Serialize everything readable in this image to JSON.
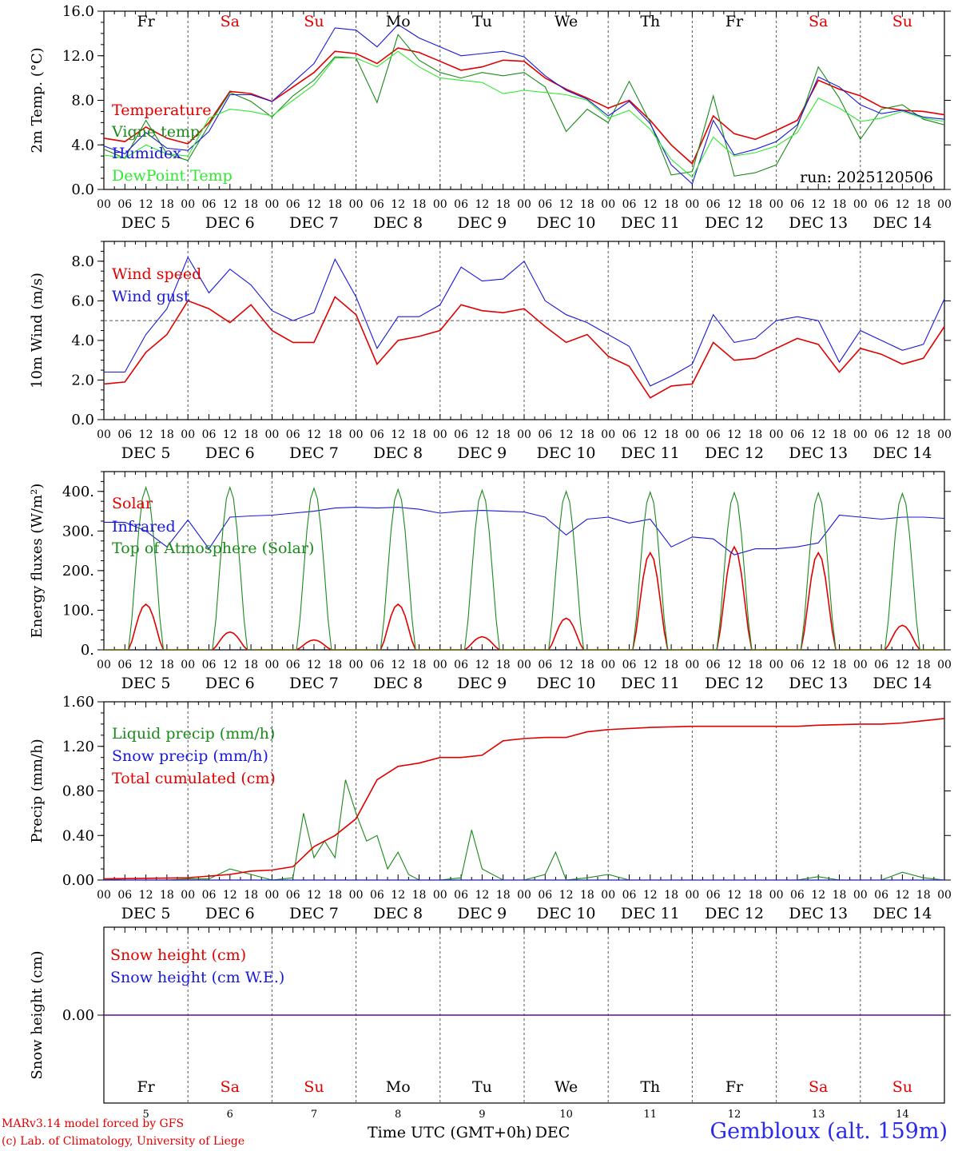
{
  "colors": {
    "red": "#e00000",
    "green": "#1a8a1a",
    "blue": "#1818d8",
    "lightgreen": "#30e830",
    "grid": "#555555"
  },
  "days": {
    "names": [
      "Fr",
      "Sa",
      "Su",
      "Mo",
      "Tu",
      "We",
      "Th",
      "Fr",
      "Sa",
      "Su"
    ],
    "weekend": [
      false,
      true,
      true,
      false,
      false,
      false,
      false,
      false,
      true,
      true
    ],
    "labels": [
      "DEC  5",
      "DEC  6",
      "DEC  7",
      "DEC  8",
      "DEC  9",
      "DEC 10",
      "DEC 11",
      "DEC 12",
      "DEC 13",
      "DEC 14"
    ],
    "nums": [
      "5",
      "6",
      "7",
      "8",
      "9",
      "10",
      "11",
      "12",
      "13",
      "14"
    ],
    "hour_ticks": [
      "00",
      "06",
      "12",
      "18"
    ],
    "end_tick": "00"
  },
  "footer": {
    "model": "MARv3.14 model forced by GFS",
    "lab": "(c) Lab. of Climatology, University of Liege",
    "time_label": "Time UTC (GMT+0h)",
    "month": "DEC",
    "site": "Gembloux (alt. 159m)"
  },
  "chart_data": [
    {
      "type": "line",
      "ylabel": "2m Temp. (°C)",
      "ylim": [
        0,
        16
      ],
      "yticks": [
        "0.0",
        "4.0",
        "8.0",
        "12.0",
        "16.0"
      ],
      "annotation": "run: 2025120506",
      "x_unit": "hours from DEC 5 00 UTC",
      "series": [
        {
          "name": "Temperature",
          "color": "#e00000",
          "x": [
            0,
            6,
            12,
            18,
            24,
            30,
            36,
            42,
            48,
            54,
            60,
            66,
            72,
            78,
            84,
            90,
            96,
            102,
            108,
            114,
            120,
            126,
            132,
            138,
            144,
            150,
            156,
            162,
            168,
            174,
            180,
            186,
            192,
            198,
            204,
            210,
            216,
            222,
            228,
            234,
            240
          ],
          "y": [
            4.6,
            4.3,
            5.6,
            4.6,
            4.1,
            6.0,
            8.8,
            8.6,
            7.9,
            9.2,
            10.5,
            12.4,
            12.2,
            11.3,
            12.7,
            12.3,
            11.5,
            10.7,
            11.0,
            11.6,
            11.5,
            10.0,
            9.0,
            8.2,
            7.3,
            8.0,
            6.2,
            4.0,
            2.3,
            6.6,
            5.0,
            4.5,
            5.3,
            6.2,
            9.8,
            9.0,
            8.4,
            7.4,
            7.1,
            7.0,
            6.7
          ]
        },
        {
          "name": "Vigne temp",
          "color": "#1a8a1a",
          "x": [
            0,
            6,
            12,
            18,
            24,
            30,
            36,
            42,
            48,
            54,
            60,
            66,
            72,
            78,
            84,
            90,
            96,
            102,
            108,
            114,
            120,
            126,
            132,
            138,
            144,
            150,
            156,
            162,
            168,
            174,
            180,
            186,
            192,
            198,
            204,
            210,
            216,
            222,
            228,
            234,
            240
          ],
          "y": [
            3.6,
            2.8,
            6.2,
            3.2,
            2.6,
            5.8,
            8.7,
            7.9,
            6.5,
            8.4,
            9.8,
            11.9,
            11.8,
            7.8,
            13.9,
            11.6,
            10.5,
            10.0,
            10.5,
            10.2,
            10.5,
            9.2,
            5.2,
            7.2,
            6.0,
            9.7,
            6.0,
            1.3,
            1.6,
            8.4,
            1.2,
            1.5,
            2.2,
            5.6,
            11.0,
            8.2,
            4.5,
            7.2,
            7.6,
            6.3,
            5.8
          ]
        },
        {
          "name": "Humidex",
          "color": "#1818d8",
          "x": [
            0,
            6,
            12,
            18,
            24,
            30,
            36,
            42,
            48,
            54,
            60,
            66,
            72,
            78,
            84,
            90,
            96,
            102,
            108,
            114,
            120,
            126,
            132,
            138,
            144,
            150,
            156,
            162,
            168,
            174,
            180,
            186,
            192,
            198,
            204,
            210,
            216,
            222,
            228,
            234,
            240
          ],
          "y": [
            3.9,
            3.2,
            5.1,
            3.7,
            3.5,
            5.2,
            8.5,
            8.5,
            7.9,
            9.6,
            11.3,
            14.5,
            14.3,
            12.8,
            14.8,
            13.6,
            12.8,
            12.0,
            12.2,
            12.4,
            11.9,
            10.2,
            8.9,
            8.1,
            6.6,
            7.9,
            5.9,
            2.2,
            0.5,
            6.2,
            3.1,
            3.6,
            4.3,
            5.8,
            10.1,
            9.2,
            7.6,
            6.8,
            7.1,
            6.5,
            6.3
          ]
        },
        {
          "name": "DewPoint Temp",
          "color": "#30e830",
          "x": [
            0,
            6,
            12,
            18,
            24,
            30,
            36,
            42,
            48,
            54,
            60,
            66,
            72,
            78,
            84,
            90,
            96,
            102,
            108,
            114,
            120,
            126,
            132,
            138,
            144,
            150,
            156,
            162,
            168,
            174,
            180,
            186,
            192,
            198,
            204,
            210,
            216,
            222,
            228,
            234,
            240
          ],
          "y": [
            3.1,
            2.8,
            4.0,
            3.2,
            3.0,
            6.4,
            7.2,
            7.0,
            6.6,
            8.0,
            9.4,
            11.8,
            11.8,
            11.0,
            12.4,
            11.0,
            10.0,
            9.8,
            9.6,
            8.6,
            8.9,
            8.7,
            8.5,
            8.0,
            6.4,
            7.1,
            5.4,
            2.7,
            1.1,
            4.7,
            3.0,
            3.3,
            3.9,
            5.1,
            8.2,
            7.3,
            6.1,
            6.4,
            7.0,
            6.4,
            6.1
          ]
        }
      ]
    },
    {
      "type": "line",
      "ylabel": "10m Wind (m/s)",
      "ylim": [
        0,
        9
      ],
      "yticks": [
        "0.0",
        "2.0",
        "4.0",
        "6.0",
        "8.0"
      ],
      "reference_line": 5.0,
      "x_unit": "hours from DEC 5 00 UTC",
      "series": [
        {
          "name": "Wind speed",
          "color": "#e00000",
          "x": [
            0,
            6,
            12,
            18,
            24,
            30,
            36,
            42,
            48,
            54,
            60,
            66,
            72,
            78,
            84,
            90,
            96,
            102,
            108,
            114,
            120,
            126,
            132,
            138,
            144,
            150,
            156,
            162,
            168,
            174,
            180,
            186,
            192,
            198,
            204,
            210,
            216,
            222,
            228,
            234,
            240
          ],
          "y": [
            1.8,
            1.9,
            3.4,
            4.3,
            6.0,
            5.6,
            4.9,
            5.8,
            4.5,
            3.9,
            3.9,
            6.2,
            5.3,
            2.8,
            4.0,
            4.2,
            4.5,
            5.8,
            5.5,
            5.4,
            5.6,
            4.7,
            3.9,
            4.3,
            3.2,
            2.7,
            1.1,
            1.7,
            1.8,
            3.9,
            3.0,
            3.1,
            3.6,
            4.1,
            3.8,
            2.4,
            3.6,
            3.3,
            2.8,
            3.1,
            4.7
          ]
        },
        {
          "name": "Wind gust",
          "color": "#1818d8",
          "x": [
            0,
            6,
            12,
            18,
            24,
            30,
            36,
            42,
            48,
            54,
            60,
            66,
            72,
            78,
            84,
            90,
            96,
            102,
            108,
            114,
            120,
            126,
            132,
            138,
            144,
            150,
            156,
            162,
            168,
            174,
            180,
            186,
            192,
            198,
            204,
            210,
            216,
            222,
            228,
            234,
            240
          ],
          "y": [
            2.4,
            2.4,
            4.3,
            5.6,
            8.2,
            6.4,
            7.6,
            6.8,
            5.5,
            5.0,
            5.4,
            8.1,
            6.2,
            3.6,
            5.2,
            5.2,
            5.8,
            7.7,
            7.0,
            7.1,
            8.0,
            6.0,
            5.3,
            4.9,
            4.3,
            3.7,
            1.7,
            2.2,
            2.8,
            5.3,
            3.9,
            4.1,
            5.0,
            5.2,
            5.0,
            2.9,
            4.5,
            4.0,
            3.5,
            3.8,
            6.1
          ]
        }
      ]
    },
    {
      "type": "line",
      "ylabel": "Energy fluxes (W/m²)",
      "ylim": [
        0,
        450
      ],
      "yticks": [
        "0.",
        "100.",
        "200.",
        "300.",
        "400."
      ],
      "x_unit": "hours from DEC 5 00 UTC",
      "series": [
        {
          "name": "Solar",
          "color": "#e00000",
          "peaks": [
            115,
            45,
            25,
            115,
            33,
            80,
            245,
            260,
            245,
            62
          ]
        },
        {
          "name": "Infrared",
          "color": "#1818d8",
          "x": [
            0,
            6,
            12,
            18,
            24,
            30,
            36,
            42,
            48,
            54,
            60,
            66,
            72,
            78,
            84,
            90,
            96,
            102,
            108,
            114,
            120,
            126,
            132,
            138,
            144,
            150,
            156,
            162,
            168,
            174,
            180,
            186,
            192,
            198,
            204,
            210,
            216,
            222,
            228,
            234,
            240
          ],
          "y": [
            322,
            322,
            300,
            260,
            328,
            255,
            335,
            338,
            340,
            345,
            350,
            358,
            360,
            358,
            360,
            355,
            345,
            350,
            352,
            350,
            348,
            335,
            290,
            330,
            335,
            320,
            330,
            260,
            285,
            280,
            240,
            255,
            255,
            260,
            270,
            340,
            335,
            330,
            335,
            335,
            332
          ]
        },
        {
          "name": "Top of Atmosphere (Solar)",
          "color": "#1a8a1a",
          "peaks": [
            410,
            410,
            408,
            405,
            403,
            400,
            398,
            397,
            396,
            395
          ]
        }
      ]
    },
    {
      "type": "line",
      "ylabel": "Precip (mm/h)",
      "ylim": [
        0,
        1.6
      ],
      "yticks": [
        "0.00",
        "0.40",
        "0.80",
        "1.20",
        "1.60"
      ],
      "x_unit": "hours from DEC 5 00 UTC",
      "series": [
        {
          "name": "Liquid precip (mm/h)",
          "color": "#1a8a1a",
          "x": [
            0,
            6,
            12,
            18,
            24,
            30,
            36,
            42,
            48,
            54,
            57,
            60,
            63,
            66,
            69,
            72,
            75,
            78,
            81,
            84,
            87,
            90,
            96,
            102,
            105,
            108,
            114,
            120,
            126,
            129,
            132,
            138,
            144,
            150,
            156,
            162,
            168,
            174,
            180,
            186,
            192,
            198,
            204,
            210,
            216,
            222,
            228,
            234,
            240
          ],
          "y": [
            0.01,
            0.0,
            0.0,
            0.0,
            0.01,
            0.01,
            0.1,
            0.05,
            0.0,
            0.02,
            0.6,
            0.2,
            0.35,
            0.2,
            0.9,
            0.6,
            0.35,
            0.4,
            0.1,
            0.25,
            0.05,
            0.0,
            0.0,
            0.02,
            0.45,
            0.1,
            0.0,
            0.0,
            0.05,
            0.25,
            0.0,
            0.02,
            0.05,
            0.0,
            0.0,
            0.0,
            0.0,
            0.0,
            0.0,
            0.0,
            0.0,
            0.0,
            0.03,
            0.0,
            0.0,
            0.0,
            0.07,
            0.02,
            0.0
          ]
        },
        {
          "name": "Snow precip (mm/h)",
          "color": "#1818d8",
          "x": [
            0,
            240
          ],
          "y": [
            0,
            0
          ]
        },
        {
          "name": "Total cumulated (cm)",
          "color": "#e00000",
          "x": [
            0,
            24,
            36,
            42,
            48,
            54,
            60,
            66,
            72,
            78,
            84,
            90,
            96,
            102,
            108,
            114,
            120,
            126,
            132,
            138,
            144,
            156,
            168,
            180,
            192,
            198,
            204,
            216,
            222,
            228,
            234,
            240
          ],
          "y": [
            0.01,
            0.02,
            0.05,
            0.08,
            0.09,
            0.12,
            0.3,
            0.4,
            0.55,
            0.9,
            1.02,
            1.05,
            1.1,
            1.1,
            1.12,
            1.25,
            1.27,
            1.28,
            1.28,
            1.33,
            1.35,
            1.37,
            1.38,
            1.38,
            1.38,
            1.38,
            1.39,
            1.4,
            1.4,
            1.41,
            1.43,
            1.45
          ]
        }
      ]
    },
    {
      "type": "line",
      "ylabel": "Snow height (cm)",
      "ylim": [
        -1,
        1
      ],
      "yticks": [
        "0.00"
      ],
      "x_unit": "hours from DEC 5 00 UTC",
      "series": [
        {
          "name": "Snow height (cm)",
          "color": "#e00000",
          "x": [
            0,
            240
          ],
          "y": [
            0,
            0
          ]
        },
        {
          "name": "Snow height (cm W.E.)",
          "color": "#1818d8",
          "x": [
            0,
            240
          ],
          "y": [
            0,
            0
          ]
        }
      ]
    }
  ]
}
